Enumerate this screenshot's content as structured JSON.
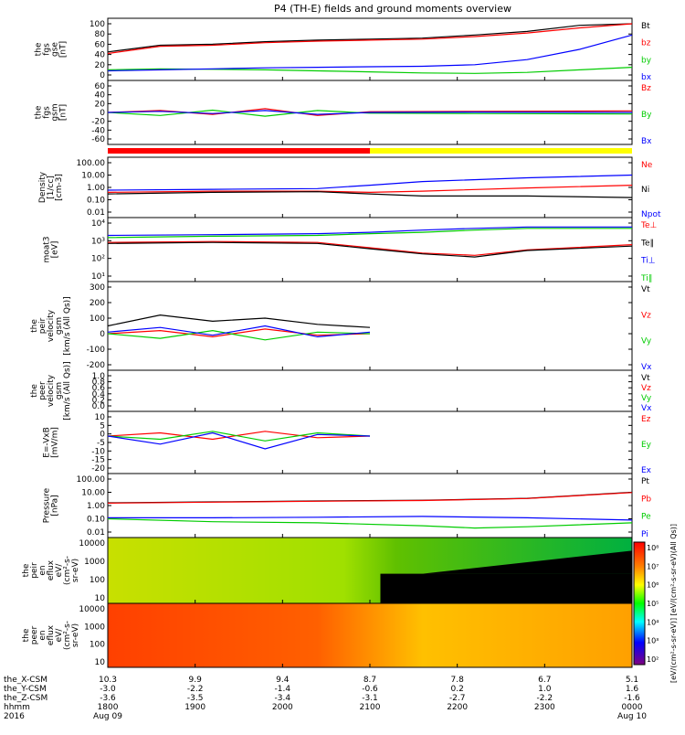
{
  "title": "P4 (TH-E) fields and ground moments overview",
  "ephemeris": {
    "rows": [
      {
        "label": "the_X-CSM",
        "values": [
          "10.3",
          "9.9",
          "9.4",
          "8.7",
          "7.8",
          "6.7",
          "5.1"
        ]
      },
      {
        "label": "the_Y-CSM",
        "values": [
          "-3.0",
          "-2.2",
          "-1.4",
          "-0.6",
          "0.2",
          "1.0",
          "1.6"
        ]
      },
      {
        "label": "the_Z-CSM",
        "values": [
          "-3.6",
          "-3.5",
          "-3.4",
          "-3.1",
          "-2.7",
          "-2.2",
          "-1.6"
        ]
      },
      {
        "label": "hhmm",
        "values": [
          "1800",
          "1900",
          "2000",
          "2100",
          "2200",
          "2300",
          "0000"
        ]
      },
      {
        "label": "2016",
        "values": [
          "Aug 09",
          "",
          "",
          "",
          "",
          "",
          "Aug 10"
        ]
      }
    ]
  },
  "chart_data": [
    {
      "type": "line",
      "id": "fgs_gse",
      "ylabel": [
        "the",
        "fgs",
        "gse",
        "[nT]"
      ],
      "yticks": [
        "100",
        "80",
        "60",
        "40",
        "20",
        "0"
      ],
      "ylim": [
        0,
        100
      ],
      "legend": [
        {
          "name": "Bt",
          "color": "#000000"
        },
        {
          "name": "bz",
          "color": "#ff0000"
        },
        {
          "name": "by",
          "color": "#00cc00"
        },
        {
          "name": "bx",
          "color": "#0000ff"
        }
      ],
      "series": [
        {
          "name": "Bt",
          "color": "#000000",
          "x": [
            0,
            0.1,
            0.2,
            0.3,
            0.4,
            0.5,
            0.6,
            0.7,
            0.8,
            0.9,
            1
          ],
          "y": [
            45,
            58,
            60,
            65,
            68,
            70,
            72,
            78,
            85,
            97,
            100
          ]
        },
        {
          "name": "bz",
          "color": "#ff0000",
          "x": [
            0,
            0.1,
            0.2,
            0.3,
            0.4,
            0.5,
            0.6,
            0.7,
            0.8,
            0.9,
            1
          ],
          "y": [
            42,
            56,
            58,
            63,
            66,
            68,
            70,
            75,
            82,
            92,
            100
          ]
        },
        {
          "name": "by",
          "color": "#00cc00",
          "x": [
            0,
            0.1,
            0.2,
            0.3,
            0.4,
            0.5,
            0.6,
            0.7,
            0.8,
            0.9,
            1
          ],
          "y": [
            10,
            12,
            11,
            10,
            8,
            6,
            4,
            3,
            5,
            10,
            15
          ]
        },
        {
          "name": "bx",
          "color": "#0000ff",
          "x": [
            0,
            0.1,
            0.2,
            0.3,
            0.4,
            0.5,
            0.6,
            0.7,
            0.8,
            0.9,
            1
          ],
          "y": [
            8,
            10,
            12,
            14,
            15,
            16,
            17,
            20,
            30,
            50,
            78
          ]
        }
      ]
    },
    {
      "type": "line",
      "id": "fgs_gsm",
      "ylabel": [
        "the",
        "fgs",
        "gsm",
        "[nT]"
      ],
      "yticks": [
        "60",
        "40",
        "20",
        "0",
        "-20",
        "-40",
        "-60"
      ],
      "ylim": [
        -70,
        70
      ],
      "legend": [
        {
          "name": "Bz",
          "color": "#ff0000"
        },
        {
          "name": "By",
          "color": "#00cc00"
        },
        {
          "name": "Bx",
          "color": "#0000ff"
        }
      ],
      "series": [
        {
          "name": "Bz",
          "color": "#ff0000",
          "x": [
            0,
            0.1,
            0.2,
            0.3,
            0.4,
            0.5,
            0.7,
            1
          ],
          "y": [
            0,
            5,
            -5,
            10,
            -8,
            2,
            3,
            4
          ]
        },
        {
          "name": "By",
          "color": "#00cc00",
          "x": [
            0,
            0.1,
            0.2,
            0.3,
            0.4,
            0.5,
            0.7,
            1
          ],
          "y": [
            0,
            -8,
            6,
            -10,
            5,
            -2,
            -3,
            -4
          ]
        },
        {
          "name": "Bx",
          "color": "#0000ff",
          "x": [
            0,
            0.1,
            0.2,
            0.3,
            0.4,
            0.5,
            0.7,
            1
          ],
          "y": [
            0,
            3,
            -3,
            5,
            -5,
            0,
            1,
            0
          ]
        }
      ]
    },
    {
      "type": "line",
      "id": "density",
      "log": true,
      "ylabel": [
        "Density",
        "[1/cc]",
        "[cm-3]"
      ],
      "yticks": [
        "100.00",
        "10.00",
        "1.00",
        "0.10",
        "0.01"
      ],
      "ylim": [
        0.01,
        100
      ],
      "legend": [
        {
          "name": "Ne",
          "color": "#ff0000"
        },
        {
          "name": "Ni",
          "color": "#000000"
        },
        {
          "name": "Npot",
          "color": "#0000ff"
        }
      ],
      "series": [
        {
          "name": "Ne",
          "color": "#ff0000",
          "x": [
            0,
            0.2,
            0.4,
            0.5,
            0.6,
            0.8,
            1
          ],
          "y": [
            0.4,
            0.5,
            0.5,
            0.4,
            0.5,
            0.9,
            1.5
          ]
        },
        {
          "name": "Ni",
          "color": "#000000",
          "x": [
            0,
            0.2,
            0.4,
            0.5,
            0.6,
            0.8,
            1
          ],
          "y": [
            0.3,
            0.4,
            0.45,
            0.3,
            0.2,
            0.2,
            0.15
          ]
        },
        {
          "name": "Npot",
          "color": "#0000ff",
          "x": [
            0,
            0.2,
            0.4,
            0.5,
            0.6,
            0.8,
            1
          ],
          "y": [
            0.6,
            0.7,
            0.8,
            1.5,
            3,
            6,
            10
          ]
        }
      ]
    },
    {
      "type": "line",
      "id": "temperature",
      "log": true,
      "ylabel": [
        "moat3",
        "[eV]"
      ],
      "yticks": [
        "10⁴",
        "10³",
        "10²",
        "10¹"
      ],
      "ylim": [
        10,
        10000
      ],
      "legend": [
        {
          "name": "Te⊥",
          "color": "#ff0000"
        },
        {
          "name": "Te∥",
          "color": "#000000"
        },
        {
          "name": "Ti⊥",
          "color": "#0000ff"
        },
        {
          "name": "Ti∥",
          "color": "#00cc00"
        }
      ],
      "series": [
        {
          "name": "Te⊥",
          "color": "#ff0000",
          "x": [
            0,
            0.2,
            0.4,
            0.5,
            0.6,
            0.7,
            0.8,
            1
          ],
          "y": [
            800,
            900,
            800,
            400,
            200,
            150,
            300,
            600
          ]
        },
        {
          "name": "Te∥",
          "color": "#000000",
          "x": [
            0,
            0.2,
            0.4,
            0.5,
            0.6,
            0.7,
            0.8,
            1
          ],
          "y": [
            700,
            800,
            700,
            350,
            180,
            120,
            280,
            500
          ]
        },
        {
          "name": "Ti⊥",
          "color": "#0000ff",
          "x": [
            0,
            0.2,
            0.4,
            0.5,
            0.6,
            0.7,
            0.8,
            1
          ],
          "y": [
            2000,
            2200,
            2500,
            3000,
            4000,
            5000,
            6000,
            6000
          ]
        },
        {
          "name": "Ti∥",
          "color": "#00cc00",
          "x": [
            0,
            0.2,
            0.4,
            0.5,
            0.6,
            0.7,
            0.8,
            1
          ],
          "y": [
            1500,
            1800,
            2000,
            2500,
            3000,
            4000,
            5000,
            5000
          ]
        }
      ]
    },
    {
      "type": "line",
      "id": "peir_velocity",
      "ylabel": [
        "the",
        "peir",
        "velocity",
        "gsm",
        "[km/s (All Qs)]"
      ],
      "yticks": [
        "300",
        "200",
        "100",
        "0",
        "-100",
        "-200"
      ],
      "ylim": [
        -200,
        300
      ],
      "legend": [
        {
          "name": "Vt",
          "color": "#000000"
        },
        {
          "name": "Vz",
          "color": "#ff0000"
        },
        {
          "name": "Vy",
          "color": "#00cc00"
        },
        {
          "name": "Vx",
          "color": "#0000ff"
        }
      ],
      "series": [
        {
          "name": "Vt",
          "color": "#000000",
          "x": [
            0,
            0.1,
            0.2,
            0.3,
            0.4,
            0.5
          ],
          "y": [
            50,
            120,
            80,
            100,
            60,
            40
          ]
        },
        {
          "name": "Vz",
          "color": "#ff0000",
          "x": [
            0,
            0.1,
            0.2,
            0.3,
            0.4,
            0.5
          ],
          "y": [
            0,
            20,
            -20,
            30,
            -10,
            0
          ]
        },
        {
          "name": "Vy",
          "color": "#00cc00",
          "x": [
            0,
            0.1,
            0.2,
            0.3,
            0.4,
            0.5
          ],
          "y": [
            0,
            -30,
            20,
            -40,
            10,
            0
          ]
        },
        {
          "name": "Vx",
          "color": "#0000ff",
          "x": [
            0,
            0.1,
            0.2,
            0.3,
            0.4,
            0.5
          ],
          "y": [
            10,
            40,
            -10,
            50,
            -20,
            10
          ]
        }
      ]
    },
    {
      "type": "line",
      "id": "peer_velocity",
      "ylabel": [
        "the",
        "peer",
        "velocity",
        "gsm",
        "[km/s (All Qs)]"
      ],
      "yticks": [
        "1.0",
        "0.8",
        "0.6",
        "0.4",
        "0.2",
        "0.0"
      ],
      "ylim": [
        0,
        1
      ],
      "legend": [
        {
          "name": "Vt",
          "color": "#000000"
        },
        {
          "name": "Vz",
          "color": "#ff0000"
        },
        {
          "name": "Vy",
          "color": "#00cc00"
        },
        {
          "name": "Vx",
          "color": "#0000ff"
        }
      ],
      "series": []
    },
    {
      "type": "line",
      "id": "efield",
      "ylabel": [
        "E=-VxB",
        "[mV/m]"
      ],
      "yticks": [
        "10",
        "5",
        "0",
        "-5",
        "-10",
        "-15",
        "-20"
      ],
      "ylim": [
        -20,
        12
      ],
      "legend": [
        {
          "name": "Ez",
          "color": "#ff0000"
        },
        {
          "name": "Ey",
          "color": "#00cc00"
        },
        {
          "name": "Ex",
          "color": "#0000ff"
        }
      ],
      "series": [
        {
          "name": "Ez",
          "color": "#ff0000",
          "x": [
            0,
            0.1,
            0.2,
            0.3,
            0.4,
            0.5
          ],
          "y": [
            0,
            2,
            -2,
            3,
            -1,
            0
          ]
        },
        {
          "name": "Ey",
          "color": "#00cc00",
          "x": [
            0,
            0.1,
            0.2,
            0.3,
            0.4,
            0.5
          ],
          "y": [
            0,
            -2,
            3,
            -3,
            2,
            0
          ]
        },
        {
          "name": "Ex",
          "color": "#0000ff",
          "x": [
            0,
            0.1,
            0.2,
            0.3,
            0.4,
            0.5
          ],
          "y": [
            0,
            -5,
            2,
            -8,
            1,
            0
          ]
        }
      ]
    },
    {
      "type": "line",
      "id": "pressure",
      "log": true,
      "ylabel": [
        "Pressure",
        "[nPa]"
      ],
      "yticks": [
        "100.00",
        "10.00",
        "1.00",
        "0.10",
        "0.01"
      ],
      "ylim": [
        0.01,
        100
      ],
      "legend": [
        {
          "name": "Pt",
          "color": "#000000"
        },
        {
          "name": "Pb",
          "color": "#ff0000"
        },
        {
          "name": "Pe",
          "color": "#00cc00"
        },
        {
          "name": "Pi",
          "color": "#0000ff"
        }
      ],
      "series": [
        {
          "name": "Pt",
          "color": "#000000",
          "x": [
            0,
            0.2,
            0.4,
            0.6,
            0.8,
            1
          ],
          "y": [
            1.6,
            1.9,
            2.2,
            2.5,
            3.5,
            10
          ]
        },
        {
          "name": "Pb",
          "color": "#ff0000",
          "x": [
            0,
            0.2,
            0.4,
            0.6,
            0.8,
            1
          ],
          "y": [
            1.5,
            1.8,
            2.1,
            2.4,
            3.4,
            9.5
          ]
        },
        {
          "name": "Pe",
          "color": "#00cc00",
          "x": [
            0,
            0.2,
            0.4,
            0.6,
            0.7,
            0.8,
            1
          ],
          "y": [
            0.1,
            0.06,
            0.05,
            0.03,
            0.02,
            0.025,
            0.05
          ]
        },
        {
          "name": "Pi",
          "color": "#0000ff",
          "x": [
            0,
            0.2,
            0.4,
            0.6,
            0.8,
            1
          ],
          "y": [
            0.12,
            0.12,
            0.13,
            0.15,
            0.12,
            0.08
          ]
        }
      ]
    },
    {
      "type": "heatmap",
      "id": "peir_eflux",
      "ylabel": [
        "the",
        "peir",
        "en",
        "eflux",
        "eV/",
        "(cm²-s-",
        "sr-eV)"
      ],
      "yticks": [
        "10000",
        "1000",
        "100",
        "10"
      ]
    },
    {
      "type": "heatmap",
      "id": "peer_eflux",
      "ylabel": [
        "the",
        "peer",
        "en",
        "eflux",
        "eV/",
        "(cm²-s-",
        "sr-eV)"
      ],
      "yticks": [
        "10000",
        "1000",
        "100",
        "10"
      ]
    }
  ],
  "colorbar": {
    "ticks": [
      "10⁸",
      "10⁷",
      "10⁶",
      "10⁵",
      "10⁴",
      "10³",
      "10²"
    ],
    "label": "[eV/(cm²-s-sr-eV)] [eV/(cm²-s-sr-eV)(All Qs)]",
    "colors": [
      "#ff0000",
      "#ff8000",
      "#ffff00",
      "#00ff00",
      "#00ffff",
      "#0000ff",
      "#800080"
    ]
  },
  "mode_bar": {
    "segments": [
      {
        "from": 0,
        "to": 0.5,
        "color": "#ff0000"
      },
      {
        "from": 0.5,
        "to": 1,
        "color": "#ffff00"
      }
    ]
  }
}
